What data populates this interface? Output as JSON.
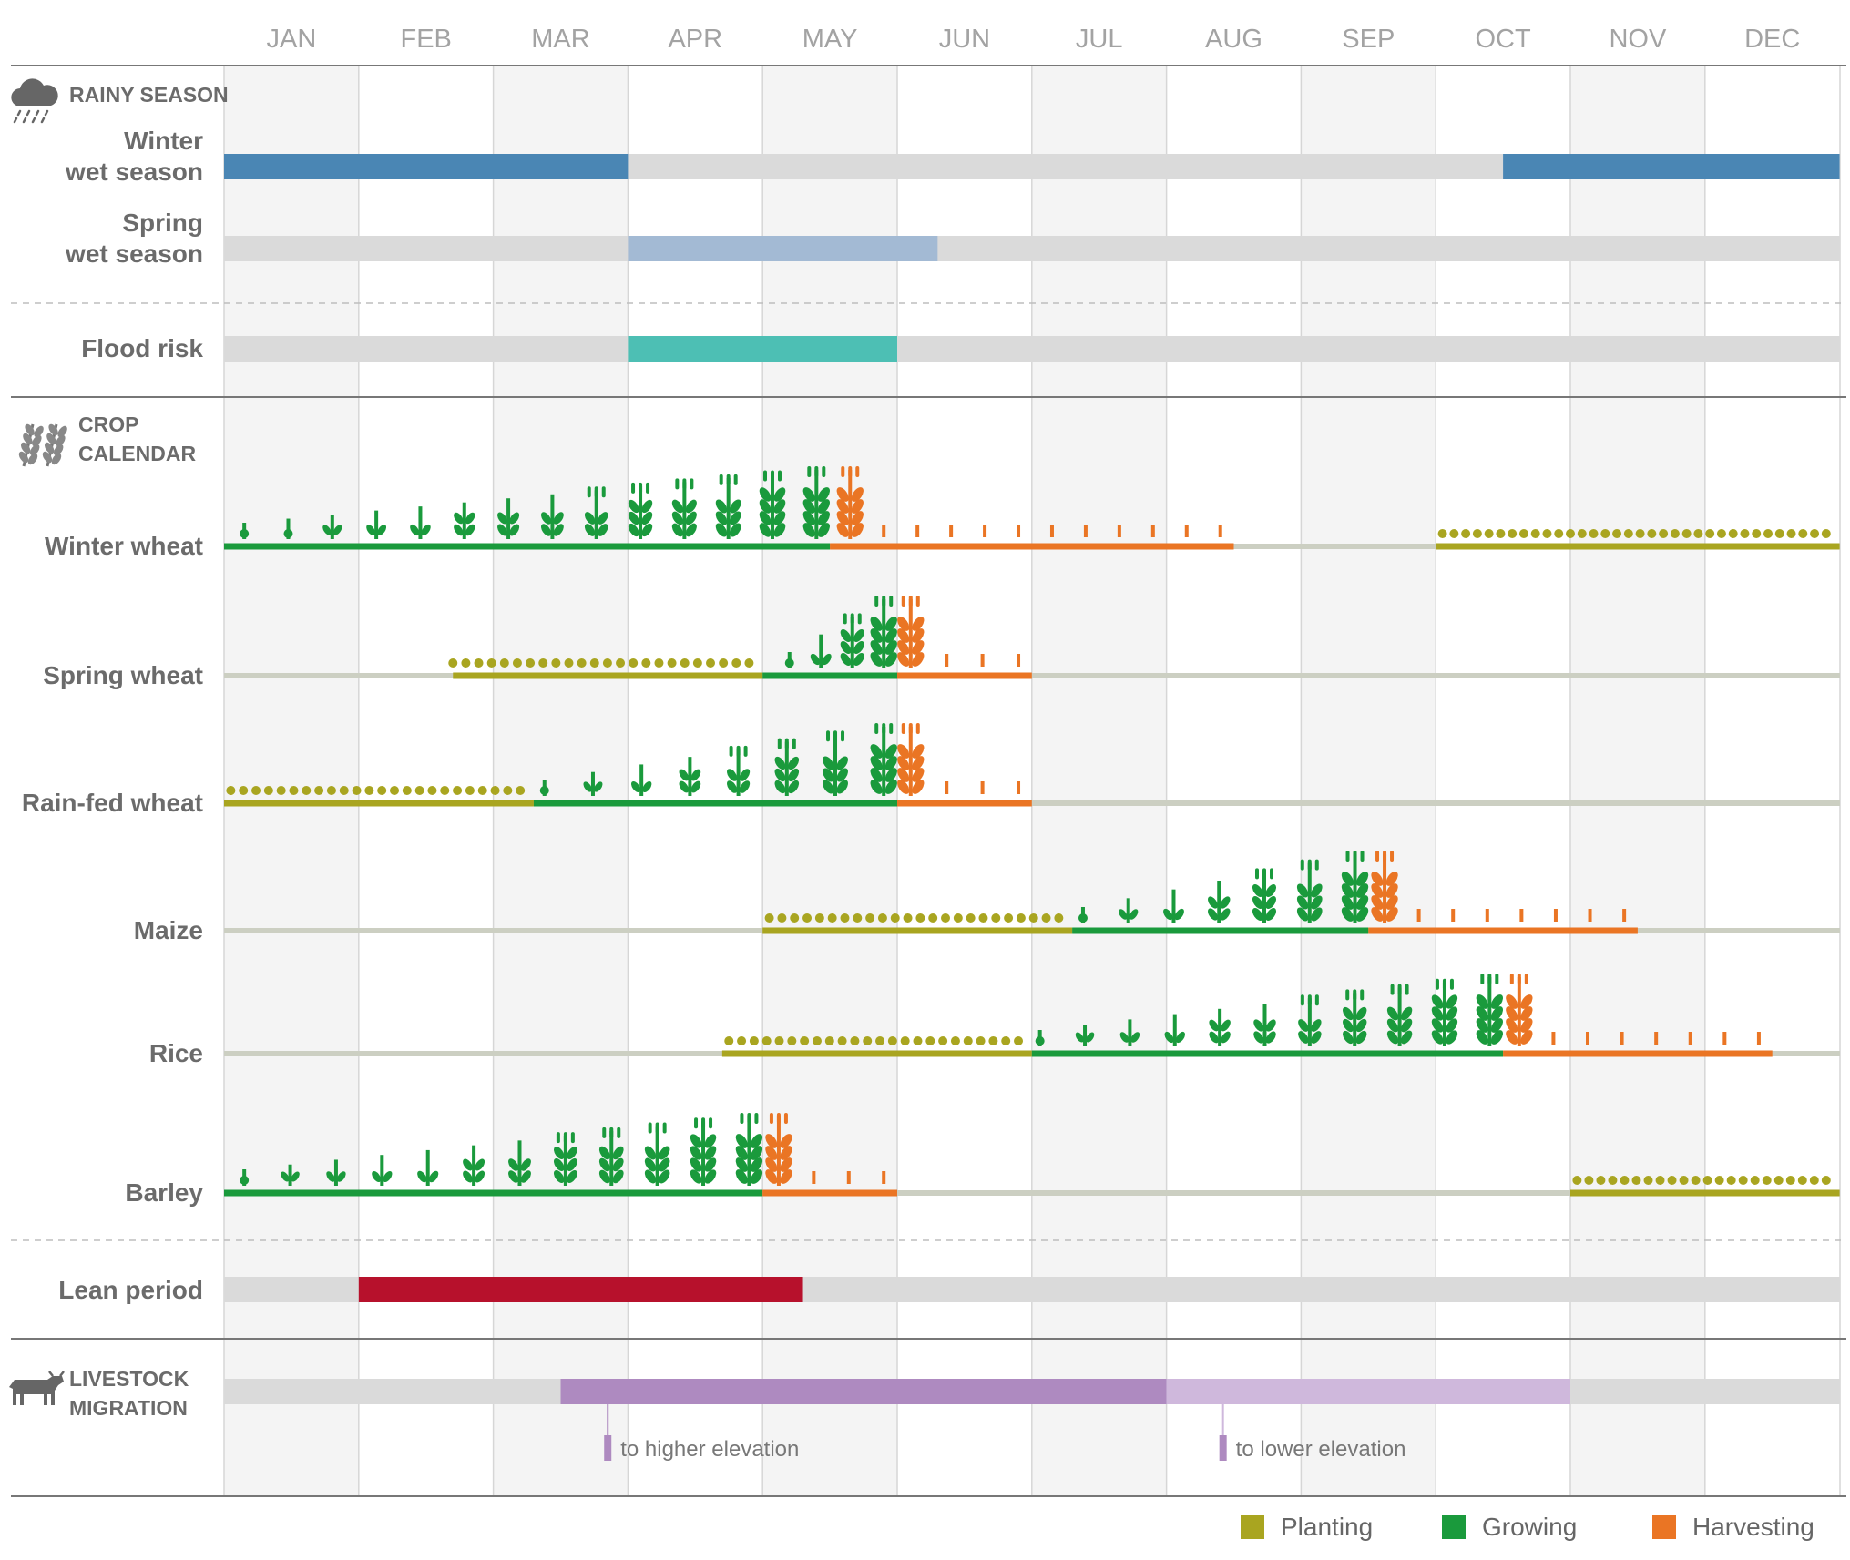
{
  "months": [
    "JAN",
    "FEB",
    "MAR",
    "APR",
    "MAY",
    "JUN",
    "JUL",
    "AUG",
    "SEP",
    "OCT",
    "NOV",
    "DEC"
  ],
  "colors": {
    "band": "#f4f4f4",
    "track": "#dadada",
    "crop_track": "#cccfc2",
    "month_text": "#a3a3a3",
    "label_text": "#6b6b6b",
    "rule": "#777777",
    "planting": "#a9a520",
    "growing": "#1a9a3c",
    "harvesting": "#ea7524",
    "winter_wet": "#4a86b4",
    "spring_wet": "#a3bad4",
    "flood": "#4dbfb4",
    "lean": "#b7112c",
    "migration_up": "#ae8ac0",
    "migration_down": "#cfb8dc"
  },
  "sections": {
    "rainy_season": {
      "line1": "RAINY SEASON",
      "icon": "rain-cloud-icon"
    },
    "crop_calendar": {
      "line1": "CROP",
      "line2": "CALENDAR",
      "icon": "wheat-icon"
    },
    "livestock_migration": {
      "line1": "LIVESTOCK",
      "line2": "MIGRATION",
      "icon": "cow-icon"
    }
  },
  "legend": {
    "planting": "Planting",
    "growing": "Growing",
    "harvesting": "Harvesting"
  },
  "chart_data": {
    "type": "table",
    "x_unit": "month",
    "rainy_season": [
      {
        "label_lines": [
          "Winter",
          "wet season"
        ],
        "periods": [
          {
            "start": 0,
            "end": 3,
            "color_key": "winter_wet"
          },
          {
            "start": 9.5,
            "end": 12,
            "color_key": "winter_wet"
          }
        ]
      },
      {
        "label_lines": [
          "Spring",
          "wet season"
        ],
        "periods": [
          {
            "start": 3,
            "end": 5.3,
            "color_key": "spring_wet"
          }
        ]
      }
    ],
    "flood_risk": {
      "label": "Flood risk",
      "periods": [
        {
          "start": 3,
          "end": 5,
          "color_key": "flood"
        }
      ]
    },
    "crops": [
      {
        "name": "Winter wheat",
        "phases": [
          {
            "stage": "growing",
            "start": 0,
            "end": 4.5,
            "icon_start": 0.15,
            "icon_count": 14
          },
          {
            "stage": "harvesting",
            "start": 4.5,
            "end": 7.5,
            "icon_start": 4.65,
            "icon_count": 12
          },
          {
            "stage": "planting",
            "start": 9,
            "end": 12,
            "icon_start": 9.05,
            "icon_count": 34
          }
        ]
      },
      {
        "name": "Spring wheat",
        "phases": [
          {
            "stage": "planting",
            "start": 1.7,
            "end": 4,
            "icon_start": 1.7,
            "icon_count": 24
          },
          {
            "stage": "growing",
            "start": 4,
            "end": 5,
            "icon_start": 4.2,
            "icon_count": 4
          },
          {
            "stage": "harvesting",
            "start": 5,
            "end": 6,
            "icon_start": 5.1,
            "icon_count": 4
          }
        ]
      },
      {
        "name": "Rain-fed wheat",
        "phases": [
          {
            "stage": "planting",
            "start": 0,
            "end": 2.3,
            "icon_start": 0.05,
            "icon_count": 24
          },
          {
            "stage": "growing",
            "start": 2.3,
            "end": 5,
            "icon_start": 2.38,
            "icon_count": 8
          },
          {
            "stage": "harvesting",
            "start": 5,
            "end": 6,
            "icon_start": 5.1,
            "icon_count": 4
          }
        ]
      },
      {
        "name": "Maize",
        "phases": [
          {
            "stage": "planting",
            "start": 4,
            "end": 6.3,
            "icon_start": 4.05,
            "icon_count": 24
          },
          {
            "stage": "growing",
            "start": 6.3,
            "end": 8.5,
            "icon_start": 6.38,
            "icon_count": 7
          },
          {
            "stage": "harvesting",
            "start": 8.5,
            "end": 10.5,
            "icon_start": 8.62,
            "icon_count": 8
          }
        ]
      },
      {
        "name": "Rice",
        "phases": [
          {
            "stage": "planting",
            "start": 3.7,
            "end": 6,
            "icon_start": 3.75,
            "icon_count": 24
          },
          {
            "stage": "growing",
            "start": 6,
            "end": 9.5,
            "icon_start": 6.06,
            "icon_count": 11
          },
          {
            "stage": "harvesting",
            "start": 9.5,
            "end": 11.5,
            "icon_start": 9.62,
            "icon_count": 8
          }
        ]
      },
      {
        "name": "Barley",
        "phases": [
          {
            "stage": "growing",
            "start": 0,
            "end": 4,
            "icon_start": 0.15,
            "icon_count": 12
          },
          {
            "stage": "harvesting",
            "start": 4,
            "end": 5,
            "icon_start": 4.12,
            "icon_count": 4
          },
          {
            "stage": "planting",
            "start": 10,
            "end": 12,
            "icon_start": 10.05,
            "icon_count": 22
          }
        ]
      }
    ],
    "lean_period": {
      "label": "Lean period",
      "periods": [
        {
          "start": 1,
          "end": 4.3,
          "color_key": "lean"
        }
      ]
    },
    "livestock_migration": {
      "periods": [
        {
          "start": 2.5,
          "end": 7,
          "color_key": "migration_up",
          "annotation": "to higher elevation",
          "annotation_at": 2.85
        },
        {
          "start": 7,
          "end": 10,
          "color_key": "migration_down",
          "annotation": "to lower elevation",
          "annotation_at": 7.42
        }
      ]
    }
  }
}
